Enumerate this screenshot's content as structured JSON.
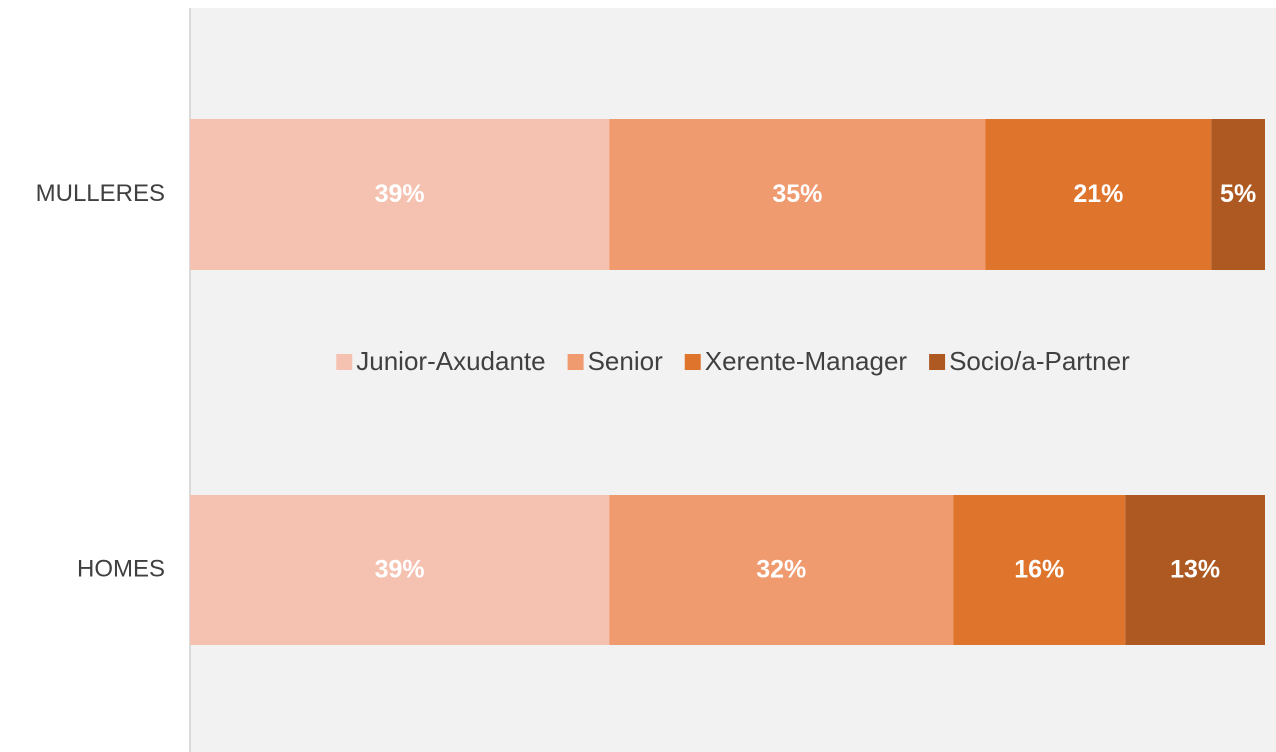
{
  "chart_data": {
    "type": "stacked-barh",
    "categories": [
      "MULLERES",
      "HOMES"
    ],
    "series": [
      {
        "name": "Junior-Axudante",
        "color": "#f5c1b0",
        "values": [
          39,
          39
        ],
        "value_labels": [
          "39%",
          "39%"
        ]
      },
      {
        "name": "Senior",
        "color": "#f09a70",
        "values": [
          35,
          32
        ],
        "value_labels": [
          "35%",
          "32%"
        ]
      },
      {
        "name": "Xerente-Manager",
        "color": "#df752d",
        "values": [
          21,
          16
        ],
        "value_labels": [
          "21%",
          "16%"
        ]
      },
      {
        "name": "Socio/a-Partner",
        "color": "#ad5921",
        "values": [
          5,
          13
        ],
        "value_labels": [
          "5%",
          "13%"
        ]
      }
    ],
    "xlim": [
      0,
      100
    ],
    "legend": "center"
  }
}
